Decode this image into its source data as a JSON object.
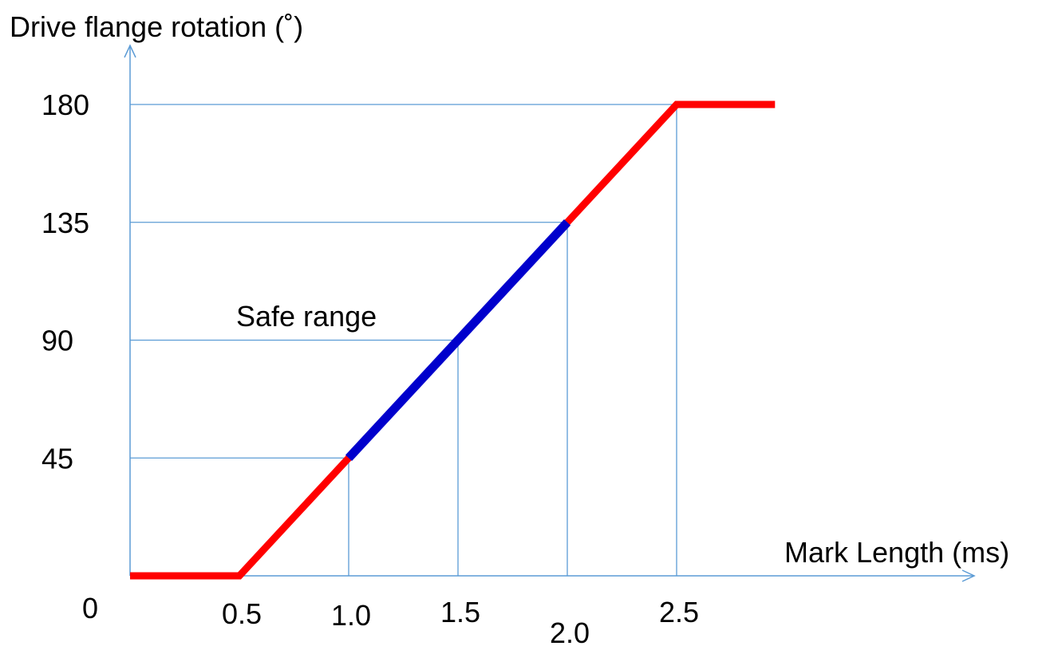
{
  "chart_data": {
    "type": "line",
    "ylabel": "Drive flange rotation (˚)",
    "xlabel": "Mark Length (ms)",
    "origin_label": "0",
    "x_ticks": [
      "0.5",
      "1.0",
      "1.5",
      "2.0",
      "2.5"
    ],
    "y_ticks": [
      "45",
      "90",
      "135",
      "180"
    ],
    "xlim": [
      0,
      2.95
    ],
    "ylim": [
      0,
      180
    ],
    "grid": false,
    "reference_lines": [
      {
        "x": 1.0,
        "y": 45
      },
      {
        "x": 1.5,
        "y": 90
      },
      {
        "x": 2.0,
        "y": 135
      },
      {
        "x": 2.5,
        "y": 180
      }
    ],
    "series": [
      {
        "color": "#ff0000",
        "x": [
          0,
          0.5,
          2.5,
          2.95
        ],
        "y": [
          0,
          0,
          180,
          180
        ]
      },
      {
        "color": "#0000cc",
        "x": [
          1.0,
          2.0
        ],
        "y": [
          45,
          135
        ]
      }
    ],
    "annotations": [
      {
        "text": "Safe range"
      }
    ],
    "colors": {
      "axis": "#5b9bd5",
      "ref_lines": "#5b9bd5",
      "curve": "#ff0000",
      "safe": "#0000cc",
      "text": "#000000"
    }
  }
}
